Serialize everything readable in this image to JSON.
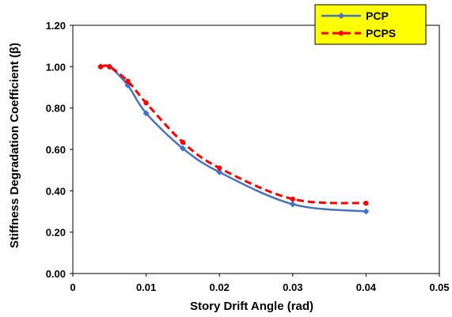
{
  "chart_data": {
    "type": "line",
    "title": "",
    "xlabel": "Story Drift Angle (rad)",
    "ylabel": "Stiffness Degradation Coefficient (β)",
    "xlim": [
      0,
      0.05
    ],
    "ylim": [
      0,
      1.2
    ],
    "x_ticks": [
      "0",
      "0.01",
      "0.02",
      "0.03",
      "0.04",
      "0.05"
    ],
    "y_ticks": [
      "0.00",
      "0.20",
      "0.40",
      "0.60",
      "0.80",
      "1.00",
      "1.20"
    ],
    "grid": false,
    "legend_position": "top-right",
    "legend_background": "#ffff00",
    "series": [
      {
        "name": "PCP",
        "color": "#4472c4",
        "line_style": "solid",
        "marker": "diamond",
        "x": [
          0.0038,
          0.005,
          0.0075,
          0.01,
          0.015,
          0.02,
          0.03,
          0.04
        ],
        "y": [
          1.0,
          1.0,
          0.91,
          0.775,
          0.605,
          0.49,
          0.335,
          0.3
        ]
      },
      {
        "name": "PCPS",
        "color": "#ff0000",
        "line_style": "dashed",
        "marker": "circle",
        "x": [
          0.0038,
          0.005,
          0.0075,
          0.01,
          0.015,
          0.02,
          0.03,
          0.04
        ],
        "y": [
          1.0,
          1.0,
          0.93,
          0.825,
          0.635,
          0.51,
          0.36,
          0.34
        ]
      }
    ]
  }
}
